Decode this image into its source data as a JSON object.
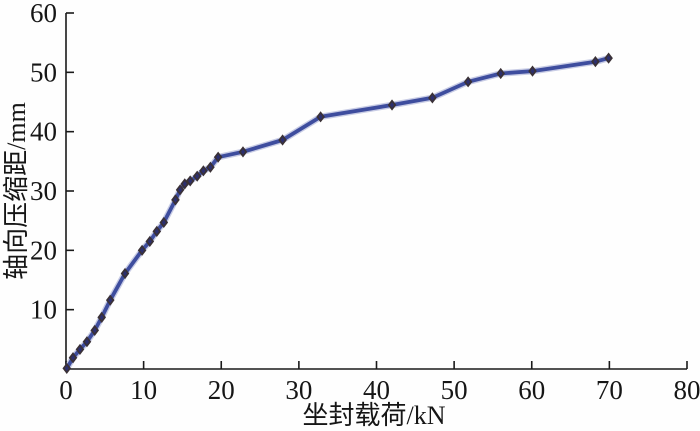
{
  "figure": {
    "background": "#fefefe"
  },
  "chart_data": {
    "type": "line",
    "title": "",
    "xlabel": "坐封载荷/kN",
    "ylabel": "轴向压缩距/mm",
    "xlim": [
      0,
      80
    ],
    "ylim": [
      0,
      60
    ],
    "xticks": [
      0,
      10,
      20,
      30,
      40,
      50,
      60,
      70,
      80
    ],
    "yticks": [
      10,
      20,
      30,
      40,
      50,
      60
    ],
    "grid": false,
    "legend": "none",
    "axis_color": "#1a1a1a",
    "line_color": "#3e4d9e",
    "line_halo_color": "#9aa3cf",
    "marker_shape": "diamond",
    "marker_color": "#3a3136",
    "marker_inner_color": "#2c2f6e",
    "x": [
      0.1,
      0.9,
      1.8,
      2.7,
      3.7,
      4.6,
      5.7,
      7.6,
      9.8,
      10.8,
      11.7,
      12.6,
      14.1,
      14.7,
      15.3,
      16.0,
      16.9,
      17.7,
      18.6,
      19.6,
      22.8,
      27.9,
      32.8,
      42.0,
      47.2,
      51.8,
      56.0,
      60.1,
      68.2,
      69.9
    ],
    "y": [
      0.1,
      1.9,
      3.3,
      4.6,
      6.5,
      8.7,
      11.6,
      16.1,
      20.0,
      21.5,
      23.2,
      24.7,
      28.5,
      30.2,
      31.2,
      31.7,
      32.5,
      33.4,
      34.0,
      35.7,
      36.6,
      38.6,
      42.5,
      44.5,
      45.7,
      48.4,
      49.8,
      50.2,
      51.8,
      52.4
    ]
  }
}
